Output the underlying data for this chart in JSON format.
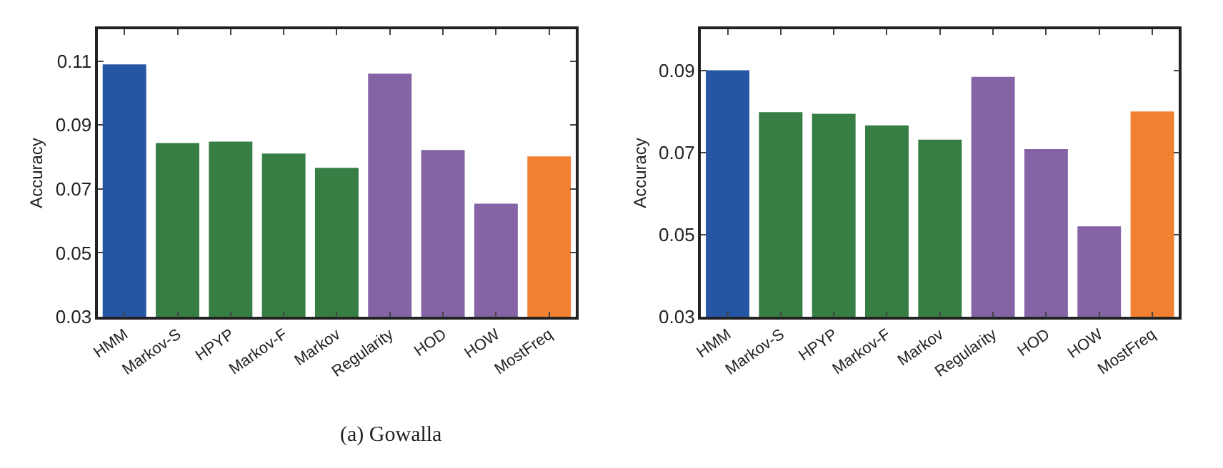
{
  "chart_data": [
    {
      "type": "bar",
      "ylabel": "Accuracy",
      "categories": [
        "HMM",
        "Markov-S",
        "HPYP",
        "Markov-F",
        "Markov",
        "Regularity",
        "HOD",
        "HOW",
        "MostFreq"
      ],
      "values": [
        0.109,
        0.0844,
        0.0848,
        0.0811,
        0.0766,
        0.1061,
        0.0822,
        0.0654,
        0.0802
      ],
      "colors": [
        "#2556a3",
        "#367e44",
        "#367e44",
        "#367e44",
        "#367e44",
        "#8464a5",
        "#8464a5",
        "#8464a5",
        "#f28033"
      ],
      "ylim": [
        0.03,
        0.12
      ],
      "yticks": [
        0.03,
        0.05,
        0.07,
        0.09,
        0.11
      ],
      "annotations": [
        "(a) Gowalla"
      ]
    },
    {
      "type": "bar",
      "ylabel": "Accuracy",
      "categories": [
        "HMM",
        "Markov-S",
        "HPYP",
        "Markov-F",
        "Markov",
        "Regularity",
        "HOD",
        "HOW",
        "MostFreq"
      ],
      "values": [
        0.09,
        0.0798,
        0.0794,
        0.0766,
        0.0731,
        0.0884,
        0.0708,
        0.052,
        0.08
      ],
      "colors": [
        "#2556a3",
        "#367e44",
        "#367e44",
        "#367e44",
        "#367e44",
        "#8464a5",
        "#8464a5",
        "#8464a5",
        "#f28033"
      ],
      "ylim": [
        0.03,
        0.1
      ],
      "yticks": [
        0.03,
        0.05,
        0.07,
        0.09
      ]
    }
  ]
}
